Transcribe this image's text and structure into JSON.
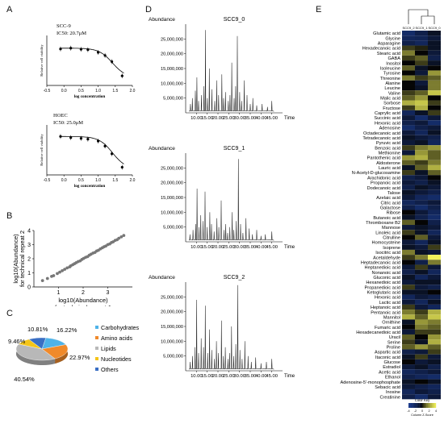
{
  "panel_labels": {
    "a": "A",
    "b": "B",
    "c": "C",
    "d": "D",
    "e": "E"
  },
  "chart_data": [
    {
      "type": "scatter",
      "panel": "A-top",
      "title": "SCC-9",
      "subtitle": "IC50: 20.7μM",
      "xlabel": "log concentration",
      "ylabel": "Relative cell viability",
      "x_ticks": [
        "-0.5",
        "0.0",
        "0.5",
        "1.0",
        "1.5",
        "2.0"
      ],
      "xlim": [
        -0.5,
        2.0
      ],
      "ylim": [
        0,
        1.3
      ],
      "x": [
        -0.1,
        0.2,
        0.5,
        0.7,
        1.0,
        1.2,
        1.4,
        1.7
      ],
      "y": [
        0.95,
        0.97,
        0.94,
        0.93,
        0.86,
        0.78,
        0.62,
        0.25
      ],
      "fit": true
    },
    {
      "type": "scatter",
      "panel": "A-bottom",
      "title": "HOEC",
      "subtitle": "IC50: 25.0μM",
      "xlabel": "log concentration",
      "ylabel": "Relative cell viability",
      "x_ticks": [
        "-0.5",
        "0.0",
        "0.5",
        "1.0",
        "1.5",
        "2.0"
      ],
      "xlim": [
        -0.5,
        2.0
      ],
      "ylim": [
        0,
        1.3
      ],
      "x": [
        -0.1,
        0.2,
        0.5,
        0.7,
        1.0,
        1.2,
        1.4,
        1.7
      ],
      "y": [
        1.0,
        0.97,
        0.95,
        0.93,
        0.88,
        0.75,
        0.55,
        0.2
      ],
      "fit": true
    },
    {
      "type": "scatter",
      "panel": "B",
      "xlabel": "log10(Abundance)\nfor technical repeat 1",
      "ylabel": "log10(Abundance)\nfor technical repeat 2",
      "x_ticks": [
        "1",
        "2",
        "3"
      ],
      "y_ticks": [
        "0",
        "1",
        "2",
        "3",
        "4"
      ],
      "xlim": [
        0,
        4
      ],
      "ylim": [
        0,
        4
      ],
      "x": [
        0.35,
        0.55,
        0.72,
        0.8,
        0.95,
        1.05,
        1.15,
        1.25,
        1.35,
        1.45,
        1.5,
        1.58,
        1.65,
        1.72,
        1.8,
        1.88,
        1.95,
        2.02,
        2.1,
        2.18,
        2.25,
        2.32,
        2.4,
        2.48,
        2.55,
        2.62,
        2.7,
        2.78,
        2.85,
        2.92,
        3.0,
        3.08,
        3.15,
        3.22,
        3.3,
        3.38,
        3.45,
        3.55,
        3.65
      ],
      "y": [
        0.45,
        0.6,
        0.75,
        0.8,
        0.95,
        1.05,
        1.15,
        1.25,
        1.35,
        1.42,
        1.5,
        1.58,
        1.65,
        1.72,
        1.8,
        1.85,
        1.95,
        2.02,
        2.1,
        2.15,
        2.25,
        2.32,
        2.4,
        2.45,
        2.55,
        2.6,
        2.7,
        2.78,
        2.85,
        2.9,
        3.0,
        3.05,
        3.15,
        3.2,
        3.3,
        3.35,
        3.45,
        3.55,
        3.65
      ]
    },
    {
      "type": "pie",
      "panel": "C",
      "slices": [
        {
          "name": "Carbohydrates",
          "value": 16.22,
          "label": "16.22%",
          "color": "#4fb3e8"
        },
        {
          "name": "Amino acids",
          "value": 22.97,
          "label": "22.97%",
          "color": "#f08a2b"
        },
        {
          "name": "Lipids",
          "value": 40.54,
          "label": "40.54%",
          "color": "#b8b8b8"
        },
        {
          "name": "Nucleotides",
          "value": 9.46,
          "label": "9.46%",
          "color": "#f5c518"
        },
        {
          "name": "Others",
          "value": 10.81,
          "label": "10.81%",
          "color": "#3a6fc4"
        }
      ]
    },
    {
      "type": "line",
      "panel": "D",
      "chromatograms": [
        {
          "title": "SCC9_0",
          "ylabel": "Abundance",
          "xlabel": "Time",
          "y_ticks": [
            "5,000,000",
            "10,000,000",
            "15,000,000",
            "20,000,000",
            "25,000,000"
          ],
          "x_ticks": [
            "10.00",
            "15.00",
            "20.00",
            "25.00",
            "30.00",
            "35.00",
            "40.00",
            "45.00"
          ],
          "xlim": [
            5,
            50
          ],
          "ylim": [
            0,
            30000000
          ],
          "peaks_t": [
            7.2,
            8.1,
            9.5,
            10.2,
            11.0,
            12.3,
            13.5,
            14.2,
            15.1,
            16.0,
            17.2,
            18.5,
            19.4,
            20.3,
            21.8,
            22.6,
            23.5,
            24.8,
            25.6,
            26.4,
            27.5,
            28.2,
            29.0,
            30.1,
            31.0,
            32.2,
            33.5,
            35.0,
            36.2,
            38.0,
            40.5,
            43.0,
            45.0
          ],
          "peaks_h": [
            3000000,
            5000000,
            7500000,
            12000000,
            4000000,
            6000000,
            9000000,
            28000000,
            5000000,
            15000000,
            8000000,
            4000000,
            11000000,
            6000000,
            13000000,
            5000000,
            7000000,
            4000000,
            6000000,
            17000000,
            5000000,
            9000000,
            26000000,
            7000000,
            4000000,
            11000000,
            6000000,
            3000000,
            5000000,
            2500000,
            3000000,
            2000000,
            4000000
          ]
        },
        {
          "title": "SCC9_1",
          "ylabel": "Abundance",
          "xlabel": "Time",
          "y_ticks": [
            "5,000,000",
            "10,000,000",
            "15,000,000",
            "20,000,000",
            "25,000,000"
          ],
          "x_ticks": [
            "10.00",
            "15.00",
            "20.00",
            "25.00",
            "30.00",
            "35.00",
            "40.00",
            "45.00"
          ],
          "xlim": [
            5,
            50
          ],
          "ylim": [
            0,
            30000000
          ],
          "peaks_t": [
            7.0,
            8.4,
            9.6,
            10.3,
            11.2,
            12.0,
            13.1,
            14.0,
            15.0,
            16.2,
            17.0,
            18.2,
            19.5,
            20.4,
            21.5,
            22.8,
            23.6,
            24.5,
            25.5,
            26.6,
            27.4,
            28.5,
            29.5,
            30.5,
            31.6,
            33.0,
            34.5,
            36.0,
            38.0,
            40.0,
            42.0,
            45.0
          ],
          "peaks_h": [
            2500000,
            4000000,
            6000000,
            18000000,
            5000000,
            9000000,
            7000000,
            17000000,
            5000000,
            10000000,
            6000000,
            3500000,
            8000000,
            5000000,
            14000000,
            4000000,
            6000000,
            3000000,
            5000000,
            10000000,
            4000000,
            7000000,
            28000000,
            6000000,
            3000000,
            8000000,
            4500000,
            2500000,
            4000000,
            2000000,
            2500000,
            3500000
          ]
        },
        {
          "title": "SCC9_2",
          "ylabel": "Abundance",
          "xlabel": "Time",
          "y_ticks": [
            "5,000,000",
            "10,000,000",
            "15,000,000",
            "20,000,000",
            "25,000,000"
          ],
          "x_ticks": [
            "10.00",
            "15.00",
            "20.00",
            "25.00",
            "30.00",
            "35.00",
            "40.00",
            "45.00"
          ],
          "xlim": [
            5,
            50
          ],
          "ylim": [
            0,
            30000000
          ],
          "peaks_t": [
            7.1,
            8.2,
            9.4,
            10.1,
            11.0,
            12.2,
            13.3,
            14.1,
            15.2,
            16.1,
            17.1,
            18.4,
            19.3,
            20.2,
            21.6,
            22.5,
            23.4,
            24.6,
            25.4,
            26.3,
            27.3,
            28.3,
            29.2,
            30.2,
            31.2,
            32.5,
            34.0,
            35.5,
            37.5,
            40.0,
            42.5,
            45.0
          ],
          "peaks_h": [
            3000000,
            5000000,
            8000000,
            24000000,
            6000000,
            11000000,
            8000000,
            22000000,
            6000000,
            14000000,
            7000000,
            4000000,
            10000000,
            6000000,
            17000000,
            5000000,
            8000000,
            4000000,
            6000000,
            15000000,
            5000000,
            9000000,
            29000000,
            7000000,
            4000000,
            10000000,
            5000000,
            3000000,
            4500000,
            2500000,
            3000000,
            4000000
          ]
        }
      ]
    },
    {
      "type": "heatmap",
      "panel": "E",
      "columns": [
        "SCC9_2",
        "SCC9_1",
        "SCC9_0"
      ],
      "rows": [
        "Glutamic acid",
        "Glycine",
        "Asparagine",
        "Hexadecanoic acid",
        "Stearic acid",
        "GABA",
        "Inositol",
        "Isoleucine",
        "Tyrosine",
        "Threonine",
        "Alanine",
        "Leucine",
        "Valine",
        "Malic acid",
        "Sorbose",
        "Fructose",
        "Caprylic acid",
        "Succinic acid",
        "Hexonic acid",
        "Adenosine",
        "Octadecanoic acid",
        "Tetradecanoic acid",
        "Pyruvic acid",
        "Benzoic acid",
        "Methionine",
        "Pantothenic acid",
        "Aldosterone",
        "Lauric acid",
        "N-Acetyl-D-glucosamine",
        "Arachidonic acid",
        "Propanoic acid",
        "Dodecanoic acid",
        "Talose",
        "Azelaic acid",
        "Citric acid",
        "Galactose",
        "Ribose",
        "Butanoic acid",
        "Thromboxane B2",
        "Mannose",
        "Linoleic acid",
        "Citrulline",
        "Homocysteine",
        "Isoprene",
        "Isocitric acid",
        "Acetaldehyde",
        "Heptadecanoic acid",
        "Heptanedioic acid",
        "Nonanoic acid",
        "Gluconic acid",
        "Hexanedioic acid",
        "Propanedioic acid",
        "Ketoglutaric acid",
        "Hexonic acid",
        "Lactic acid",
        "Heptanoic acid",
        "Pentanoic acid",
        "Mannitol",
        "Ornithine",
        "Fumaric acid",
        "Hexadecanedioic acid",
        "Uracil",
        "Serine",
        "Proline",
        "Aspartic acid",
        "Itaconic acid",
        "Glucose",
        "Estradiol",
        "Acetic acid",
        "Ethanol",
        "Adenosine-5'-monophosphate",
        "Sebacic acid",
        "Inosine",
        "Creatinine"
      ],
      "values": [
        [
          -2.5,
          -1.5,
          -0.5
        ],
        [
          -2.0,
          -1.8,
          -1.0
        ],
        [
          -1.5,
          -2.0,
          -0.5
        ],
        [
          0.5,
          0.2,
          -0.5
        ],
        [
          1.5,
          0.0,
          -1.0
        ],
        [
          0.5,
          1.0,
          -1.5
        ],
        [
          0.0,
          0.5,
          -0.5
        ],
        [
          1.0,
          -0.5,
          0.0
        ],
        [
          0.0,
          -1.0,
          2.0
        ],
        [
          1.5,
          0.5,
          1.0
        ],
        [
          0.0,
          -1.0,
          1.5
        ],
        [
          0.0,
          -0.5,
          1.5
        ],
        [
          0.5,
          1.0,
          3.0
        ],
        [
          1.0,
          2.0,
          0.0
        ],
        [
          2.5,
          3.0,
          0.5
        ],
        [
          0.5,
          2.5,
          0.0
        ],
        [
          -2.0,
          -0.5,
          0.5
        ],
        [
          -1.0,
          -2.5,
          -1.0
        ],
        [
          -1.5,
          -1.0,
          -2.5
        ],
        [
          -2.5,
          -1.5,
          -1.0
        ],
        [
          -1.0,
          -2.0,
          -0.5
        ],
        [
          -0.5,
          -1.0,
          -1.5
        ],
        [
          -1.0,
          -0.5,
          -2.0
        ],
        [
          0.5,
          1.5,
          2.0
        ],
        [
          -1.0,
          2.0,
          1.0
        ],
        [
          2.0,
          2.5,
          1.0
        ],
        [
          1.0,
          0.5,
          1.5
        ],
        [
          -0.5,
          1.0,
          2.5
        ],
        [
          0.5,
          -0.5,
          1.0
        ],
        [
          -1.5,
          -1.0,
          0.0
        ],
        [
          -1.0,
          -1.5,
          -0.5
        ],
        [
          -1.5,
          -0.5,
          -1.0
        ],
        [
          -0.5,
          -1.0,
          -1.5
        ],
        [
          -1.0,
          -2.0,
          -2.5
        ],
        [
          -2.0,
          -1.5,
          -1.0
        ],
        [
          -1.5,
          -2.5,
          -1.5
        ],
        [
          0.0,
          -1.0,
          -2.0
        ],
        [
          -0.5,
          -1.5,
          -2.5
        ],
        [
          1.0,
          0.0,
          -1.5
        ],
        [
          -1.0,
          -0.5,
          -1.0
        ],
        [
          0.5,
          -0.5,
          -2.0
        ],
        [
          0.0,
          1.0,
          -1.0
        ],
        [
          -1.0,
          -2.0,
          -0.5
        ],
        [
          -0.5,
          -1.0,
          0.5
        ],
        [
          1.5,
          -0.5,
          -1.0
        ],
        [
          0.5,
          1.5,
          4.0
        ],
        [
          0.0,
          -1.5,
          1.5
        ],
        [
          -1.0,
          0.5,
          -1.0
        ],
        [
          -1.5,
          -0.5,
          -2.0
        ],
        [
          -0.5,
          -2.0,
          -1.0
        ],
        [
          -1.0,
          -0.5,
          -0.5
        ],
        [
          0.5,
          -1.0,
          -1.5
        ],
        [
          -0.5,
          -0.5,
          0.0
        ],
        [
          -2.0,
          -1.0,
          -1.5
        ],
        [
          -1.0,
          -2.0,
          -0.5
        ],
        [
          0.5,
          -1.0,
          -2.0
        ],
        [
          1.5,
          0.5,
          2.5
        ],
        [
          2.5,
          1.0,
          3.0
        ],
        [
          -0.5,
          2.0,
          1.5
        ],
        [
          0.0,
          1.5,
          1.0
        ],
        [
          -1.0,
          0.5,
          0.5
        ],
        [
          1.0,
          0.0,
          2.0
        ],
        [
          0.5,
          -0.5,
          2.5
        ],
        [
          1.0,
          2.0,
          1.0
        ],
        [
          -1.5,
          -1.0,
          0.5
        ],
        [
          -0.5,
          0.5,
          -1.0
        ],
        [
          0.0,
          -1.0,
          -0.5
        ],
        [
          -1.0,
          -0.5,
          -1.5
        ],
        [
          -2.0,
          -1.5,
          -1.0
        ],
        [
          -1.5,
          -2.0,
          -2.5
        ],
        [
          -0.5,
          0.0,
          -0.5
        ],
        [
          -1.0,
          -1.5,
          -2.0
        ],
        [
          -2.0,
          -1.0,
          -1.5
        ],
        [
          -1.5,
          -2.5,
          -1.0
        ]
      ],
      "color_key_title": "Color Key",
      "color_key_ticks": [
        "-4",
        "-2",
        "0",
        "2",
        "4"
      ],
      "color_key_label": "Column Z-Score",
      "color_low": "#1a3b8f",
      "color_mid": "#050505",
      "color_high": "#f2f25a"
    }
  ]
}
